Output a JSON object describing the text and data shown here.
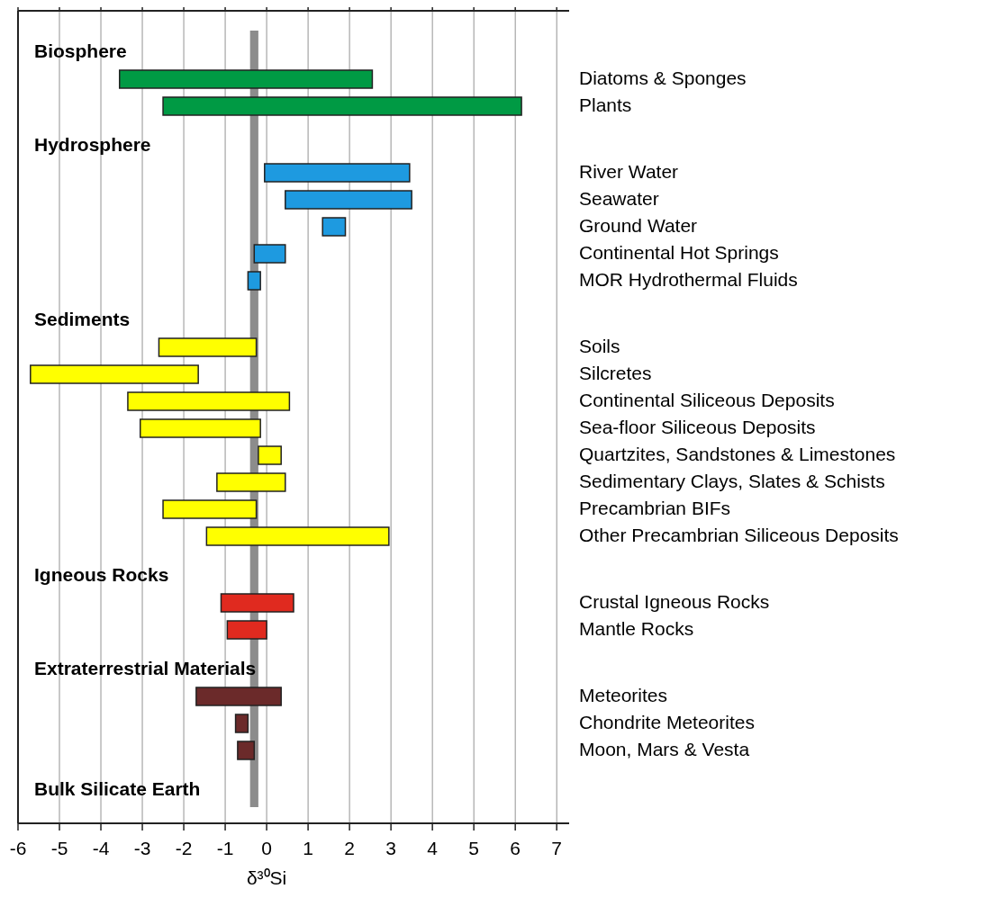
{
  "chart_data": {
    "type": "bar",
    "orientation": "horizontal",
    "xlabel": "δ³⁰Si",
    "categories": [
      "Diatoms & Sponges",
      "Plants",
      "River Water",
      "Seawater",
      "Ground Water",
      "Continental Hot Springs",
      "MOR Hydrothermal Fluids",
      "Soils",
      "Silcretes",
      "Continental Siliceous Deposits",
      "Sea-floor Siliceous Deposits",
      "Quartzites, Sandstones & Limestones",
      "Sedimentary Clays, Slates & Schists",
      "Precambrian BIFs",
      "Other Precambrian Siliceous Deposits",
      "Crustal Igneous Rocks",
      "Mantle Rocks",
      "Meteorites",
      "Chondrite Meteorites",
      "Moon, Mars & Vesta"
    ],
    "base": [
      -3.55,
      -2.5,
      -0.05,
      0.45,
      1.35,
      -0.3,
      -0.45,
      -2.6,
      -5.7,
      -3.35,
      -3.05,
      -0.2,
      -1.2,
      -2.5,
      -1.45,
      -1.1,
      -0.95,
      -1.7,
      -0.75,
      -0.7
    ],
    "values": [
      6.1,
      8.65,
      3.5,
      3.05,
      0.55,
      0.75,
      0.3,
      2.35,
      4.05,
      3.9,
      2.9,
      0.55,
      1.65,
      2.25,
      4.4,
      1.75,
      0.95,
      2.05,
      0.3,
      0.4
    ],
    "colors": [
      "#009a44",
      "#009a44",
      "#1e9ae0",
      "#1e9ae0",
      "#1e9ae0",
      "#1e9ae0",
      "#1e9ae0",
      "#ffff00",
      "#ffff00",
      "#ffff00",
      "#ffff00",
      "#ffff00",
      "#ffff00",
      "#ffff00",
      "#ffff00",
      "#e02a1f",
      "#e02a1f",
      "#6b2a2a",
      "#6b2a2a",
      "#6b2a2a"
    ],
    "annotations": [
      "Biosphere",
      "Hydrosphere",
      "Sediments",
      "Igneous Rocks",
      "Extraterrestrial Materials"
    ],
    "bands": [
      {
        "axis": "x",
        "from": -0.4,
        "to": -0.2,
        "label": "Bulk Silicate Earth",
        "color": "#8c8c8c"
      }
    ],
    "xlim": [
      -6,
      7.3
    ],
    "xticks": [
      -6,
      -5,
      -4,
      -3,
      -2,
      -1,
      0,
      1,
      2,
      3,
      4,
      5,
      6,
      7
    ],
    "grid": "x"
  }
}
